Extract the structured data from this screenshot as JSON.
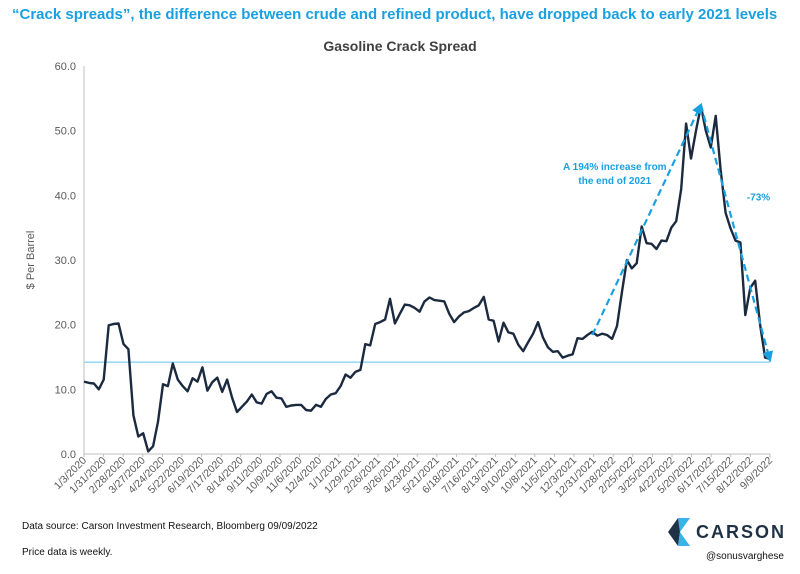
{
  "headline": "“Crack spreads”, the difference between crude and refined product, have dropped back to early 2021 levels",
  "footer": {
    "source": "Data source: Carson Investment Research, Bloomberg  09/09/2022",
    "note": "Price data is weekly.",
    "brand": "CARSON",
    "handle": "@sonusvarghese"
  },
  "colors": {
    "headline": "#1aa0e0",
    "line": "#1b2a3f",
    "annotation": "#1aa0e0",
    "reference_line": "#5bc4ee",
    "brand_dark": "#1f3245",
    "brand_light": "#3ab4e8"
  },
  "icons": [
    "carson-logo-icon"
  ],
  "chart_data": {
    "type": "line",
    "title": "Gasoline Crack Spread",
    "xlabel": "",
    "ylabel": "$ Per Barrel",
    "ylim": [
      0,
      60
    ],
    "yticks": [
      "0.0",
      "10.0",
      "20.0",
      "30.0",
      "40.0",
      "50.0",
      "60.0"
    ],
    "grid": false,
    "xtick_labels": [
      "1/3/2020",
      "1/31/2020",
      "2/28/2020",
      "3/27/2020",
      "4/24/2020",
      "5/22/2020",
      "6/19/2020",
      "7/17/2020",
      "8/14/2020",
      "9/11/2020",
      "10/9/2020",
      "11/6/2020",
      "12/4/2020",
      "1/1/2021",
      "1/29/2021",
      "2/26/2021",
      "3/26/2021",
      "4/23/2021",
      "5/21/2021",
      "6/18/2021",
      "7/16/2021",
      "8/13/2021",
      "9/10/2021",
      "10/8/2021",
      "11/5/2021",
      "12/3/2021",
      "12/31/2021",
      "1/28/2022",
      "2/25/2022",
      "3/25/2022",
      "4/22/2022",
      "5/20/2022",
      "6/17/2022",
      "7/15/2022",
      "8/12/2022",
      "9/9/2022"
    ],
    "series": [
      {
        "values": [
          11.2,
          11.0,
          10.9,
          10.0,
          11.5,
          19.9,
          20.1,
          20.2,
          17.0,
          16.2,
          6.0,
          2.7,
          3.2,
          0.4,
          1.2,
          5.0,
          10.8,
          10.5,
          14.0,
          11.5,
          10.5,
          9.7,
          11.7,
          11.2,
          13.4,
          9.8,
          11.1,
          11.8,
          9.6,
          11.5,
          8.7,
          6.5,
          7.3,
          8.1,
          9.2,
          8.0,
          7.8,
          9.3,
          9.7,
          8.7,
          8.6,
          7.3,
          7.5,
          7.6,
          7.6,
          6.8,
          6.7,
          7.6,
          7.3,
          8.5,
          9.2,
          9.4,
          10.5,
          12.3,
          11.8,
          12.7,
          13.0,
          17.0,
          16.8,
          20.1,
          20.4,
          20.8,
          24.0,
          20.2,
          21.7,
          23.1,
          23.0,
          22.6,
          22.0,
          23.6,
          24.2,
          23.8,
          23.7,
          23.6,
          21.7,
          20.4,
          21.3,
          21.9,
          22.1,
          22.6,
          23.0,
          24.3,
          20.8,
          20.6,
          17.4,
          20.3,
          18.8,
          18.6,
          16.9,
          15.9,
          17.3,
          18.6,
          20.4,
          18.0,
          16.5,
          15.8,
          15.9,
          14.9,
          15.2,
          15.4,
          17.9,
          17.8,
          18.4,
          18.9,
          18.3,
          18.6,
          18.4,
          17.8,
          19.8,
          25.0,
          30.0,
          28.7,
          29.5,
          35.2,
          32.6,
          32.5,
          31.7,
          33.0,
          32.9,
          35.0,
          36.0,
          41.0,
          51.1,
          45.7,
          50.0,
          53.8,
          50.0,
          47.4,
          52.3,
          44.0,
          37.3,
          34.9,
          33.0,
          32.7,
          21.5,
          25.7,
          26.8,
          20.0,
          14.9,
          14.7
        ]
      }
    ],
    "reference_lines": [
      {
        "y": 14.2
      }
    ],
    "annotations": [
      {
        "text": "A 194% increase from\nthe end of 2021",
        "from": {
          "index": 103,
          "y": 18.4
        },
        "to": {
          "index": 125,
          "y": 54.0
        }
      },
      {
        "text": "-73%",
        "from": {
          "index": 125,
          "y": 54.0
        },
        "to": {
          "index": 139,
          "y": 14.5
        }
      }
    ]
  }
}
